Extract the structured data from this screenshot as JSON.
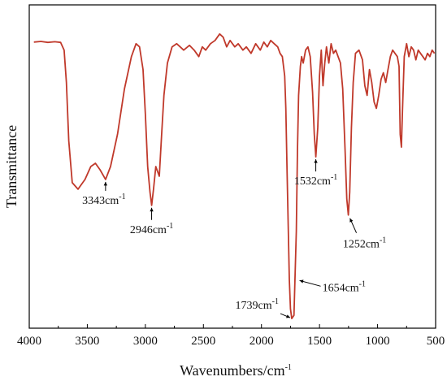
{
  "chart_data": {
    "type": "line",
    "xlabel": "Wavenumbers/cm",
    "xlabel_sup": "-1",
    "ylabel": "Transmittance",
    "xlim": [
      4000,
      500
    ],
    "ylim": [
      0,
      1
    ],
    "x_ticks": [
      "4000",
      "3500",
      "3000",
      "2500",
      "2000",
      "1500",
      "1000",
      "500"
    ],
    "x_tick_values": [
      4000,
      3500,
      3000,
      2500,
      2000,
      1500,
      1000,
      500
    ],
    "grid": false,
    "line_color": "#c0392b",
    "series": [
      {
        "x": [
          3960,
          3900,
          3840,
          3780,
          3730,
          3700,
          3680,
          3660,
          3630,
          3580,
          3520,
          3470,
          3430,
          3390,
          3343,
          3300,
          3240,
          3180,
          3120,
          3080,
          3050,
          3020,
          3000,
          2980,
          2960,
          2946,
          2930,
          2910,
          2880,
          2860,
          2840,
          2810,
          2770,
          2730,
          2700,
          2670,
          2620,
          2580,
          2540,
          2510,
          2480,
          2440,
          2400,
          2360,
          2330,
          2300,
          2270,
          2230,
          2200,
          2160,
          2130,
          2090,
          2050,
          2010,
          1980,
          1950,
          1920,
          1890,
          1860,
          1840,
          1820,
          1800,
          1790,
          1780,
          1770,
          1760,
          1750,
          1739,
          1720,
          1700,
          1690,
          1680,
          1665,
          1654,
          1640,
          1620,
          1600,
          1580,
          1560,
          1545,
          1532,
          1515,
          1500,
          1485,
          1470,
          1455,
          1440,
          1420,
          1400,
          1380,
          1360,
          1340,
          1320,
          1300,
          1280,
          1265,
          1252,
          1240,
          1225,
          1210,
          1190,
          1160,
          1130,
          1110,
          1090,
          1070,
          1050,
          1030,
          1010,
          990,
          970,
          950,
          930,
          910,
          890,
          870,
          850,
          830,
          815,
          805,
          795,
          785,
          770,
          750,
          730,
          710,
          690,
          670,
          650,
          630,
          610,
          590,
          570,
          550,
          530,
          510
        ],
        "y": [
          0.885,
          0.887,
          0.884,
          0.886,
          0.884,
          0.86,
          0.76,
          0.58,
          0.45,
          0.43,
          0.46,
          0.5,
          0.51,
          0.49,
          0.46,
          0.5,
          0.6,
          0.74,
          0.84,
          0.88,
          0.87,
          0.8,
          0.66,
          0.5,
          0.42,
          0.38,
          0.43,
          0.5,
          0.47,
          0.6,
          0.72,
          0.82,
          0.87,
          0.88,
          0.87,
          0.86,
          0.875,
          0.86,
          0.84,
          0.87,
          0.86,
          0.88,
          0.89,
          0.91,
          0.9,
          0.87,
          0.89,
          0.87,
          0.88,
          0.86,
          0.87,
          0.85,
          0.88,
          0.86,
          0.885,
          0.87,
          0.89,
          0.88,
          0.87,
          0.85,
          0.84,
          0.78,
          0.68,
          0.5,
          0.32,
          0.15,
          0.06,
          0.03,
          0.04,
          0.3,
          0.55,
          0.72,
          0.81,
          0.84,
          0.82,
          0.86,
          0.87,
          0.84,
          0.73,
          0.6,
          0.53,
          0.62,
          0.78,
          0.86,
          0.75,
          0.82,
          0.87,
          0.82,
          0.88,
          0.85,
          0.86,
          0.84,
          0.82,
          0.74,
          0.55,
          0.4,
          0.35,
          0.42,
          0.62,
          0.76,
          0.85,
          0.86,
          0.83,
          0.75,
          0.72,
          0.8,
          0.76,
          0.7,
          0.68,
          0.72,
          0.77,
          0.79,
          0.76,
          0.8,
          0.84,
          0.86,
          0.85,
          0.84,
          0.81,
          0.6,
          0.56,
          0.68,
          0.84,
          0.88,
          0.84,
          0.87,
          0.86,
          0.83,
          0.86,
          0.85,
          0.84,
          0.83,
          0.85,
          0.84,
          0.86,
          0.85
        ]
      }
    ],
    "annotations": [
      {
        "label": "3343cm",
        "sup": "-1",
        "x": 3343,
        "y": 0.46,
        "text_side": "below-left"
      },
      {
        "label": "2946cm",
        "sup": "-1",
        "x": 2946,
        "y": 0.38,
        "text_side": "below"
      },
      {
        "label": "1532cm",
        "sup": "-1",
        "x": 1532,
        "y": 0.53,
        "text_side": "below"
      },
      {
        "label": "1252cm",
        "sup": "-1",
        "x": 1252,
        "y": 0.35,
        "text_side": "below-right"
      },
      {
        "label": "1739cm",
        "sup": "-1",
        "x": 1739,
        "y": 0.03,
        "text_side": "left"
      },
      {
        "label": "1654cm",
        "sup": "-1",
        "x": 1700,
        "y": 0.15,
        "text_side": "right"
      }
    ]
  }
}
